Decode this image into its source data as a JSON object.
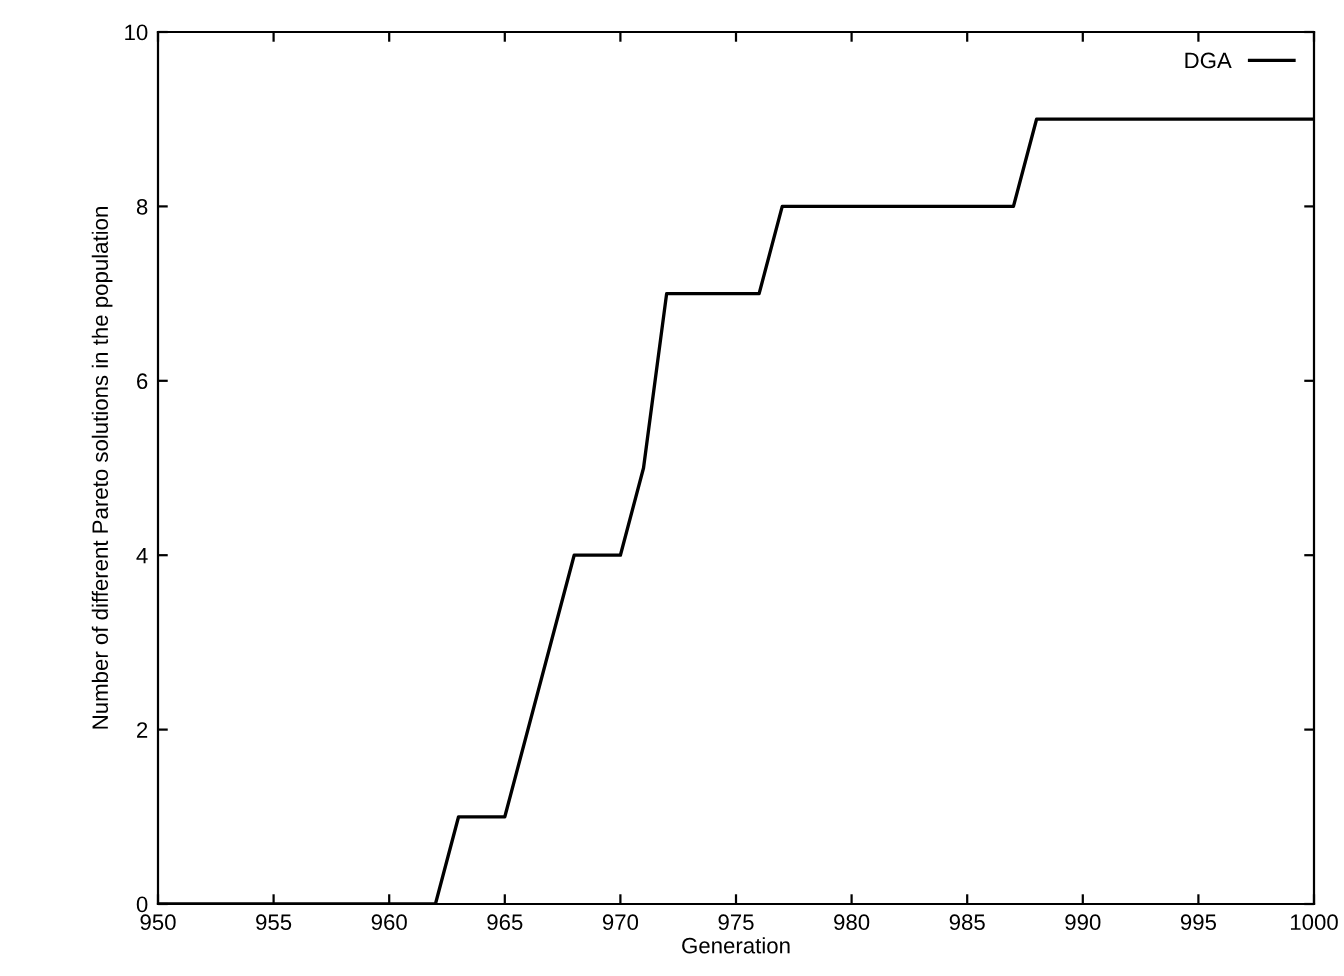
{
  "chart_data": {
    "type": "line",
    "xlabel": "Generation",
    "ylabel": "Number of different Pareto solutions in the population",
    "series": [
      {
        "name": "DGA",
        "color": "#000000",
        "x": [
          950,
          962,
          963,
          965,
          968,
          970,
          971,
          972,
          976,
          977,
          987,
          988,
          1000
        ],
        "values": [
          0,
          0,
          1,
          1,
          4,
          4,
          5,
          7,
          7,
          8,
          8,
          9,
          9
        ]
      }
    ],
    "xlim": [
      950,
      1000
    ],
    "xticks": [
      950,
      955,
      960,
      965,
      970,
      975,
      980,
      985,
      990,
      995,
      1000
    ],
    "ylim": [
      0,
      10
    ],
    "yticks": [
      0,
      2,
      4,
      6,
      8,
      10
    ],
    "grid": false,
    "legend": "top right",
    "marker": "none",
    "line_style": "solid"
  }
}
